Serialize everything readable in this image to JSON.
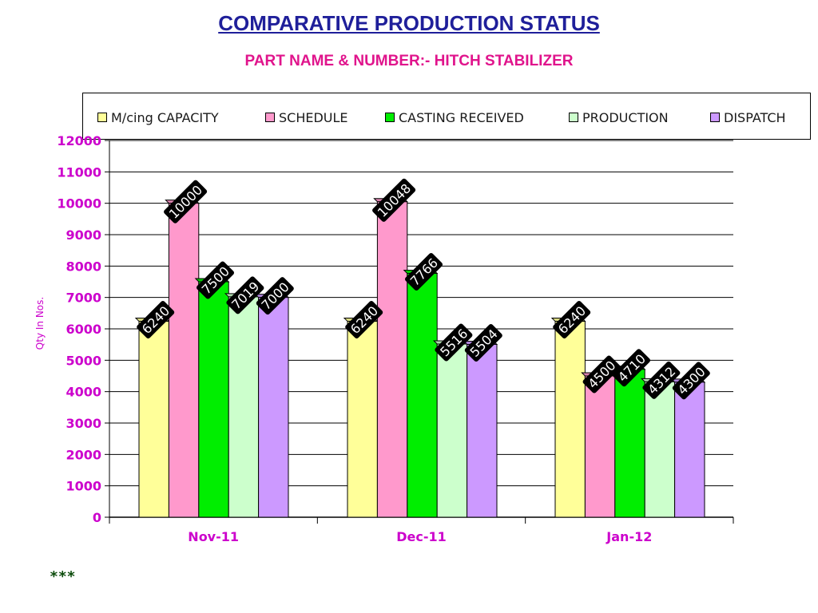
{
  "title": "COMPARATIVE PRODUCTION STATUS",
  "subtitle": "PART NAME & NUMBER:- HITCH STABILIZER",
  "footnote": "***",
  "chart_data": {
    "type": "bar",
    "ylabel": "Qty In  Nos.",
    "xlabel": "",
    "ylim": [
      0,
      12000
    ],
    "yticks": [
      0,
      1000,
      2000,
      3000,
      4000,
      5000,
      6000,
      7000,
      8000,
      9000,
      10000,
      11000,
      12000
    ],
    "grid": true,
    "legend_position": "top",
    "categories": [
      "Nov-11",
      "Dec-11",
      "Jan-12"
    ],
    "series": [
      {
        "name": "M/cing CAPACITY",
        "color": "#ffff99",
        "values": [
          6240,
          6240,
          6240
        ]
      },
      {
        "name": "SCHEDULE",
        "color": "#ff99cc",
        "values": [
          10000,
          10048,
          4500
        ]
      },
      {
        "name": "CASTING RECEIVED",
        "color": "#00ee00",
        "values": [
          7500,
          7766,
          4710
        ]
      },
      {
        "name": "PRODUCTION",
        "color": "#ccffcc",
        "values": [
          7019,
          5516,
          4312
        ]
      },
      {
        "name": "DISPATCH",
        "color": "#cc99ff",
        "values": [
          7000,
          5504,
          4300
        ]
      }
    ]
  }
}
